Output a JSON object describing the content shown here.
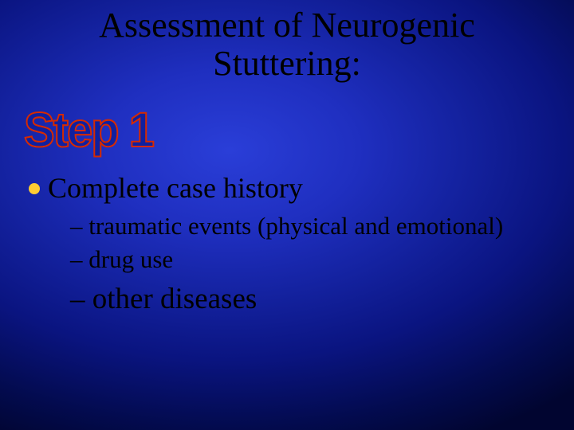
{
  "slide": {
    "background": {
      "type": "radial-gradient",
      "center_color": "#2a3ed8",
      "edge_color": "#010530"
    },
    "title": {
      "line1": "Assessment of Neurogenic",
      "line2": "Stuttering:",
      "color": "#000000",
      "fontsize": 44
    },
    "wordart": {
      "text": "Step 1",
      "fill_color": "#1020a0",
      "outline_color": "#d62a00",
      "fontsize": 58,
      "font_weight": 900
    },
    "bullet": {
      "marker_color": "#ffcc33",
      "text": "Complete case history",
      "fontsize": 36
    },
    "subbullets": [
      {
        "dash": "–",
        "text": "traumatic events (physical and emotional)",
        "fontsize": 31
      },
      {
        "dash": "–",
        "text": "drug use",
        "fontsize": 31
      },
      {
        "dash": "–",
        "text": "other diseases",
        "fontsize": 37
      }
    ]
  }
}
